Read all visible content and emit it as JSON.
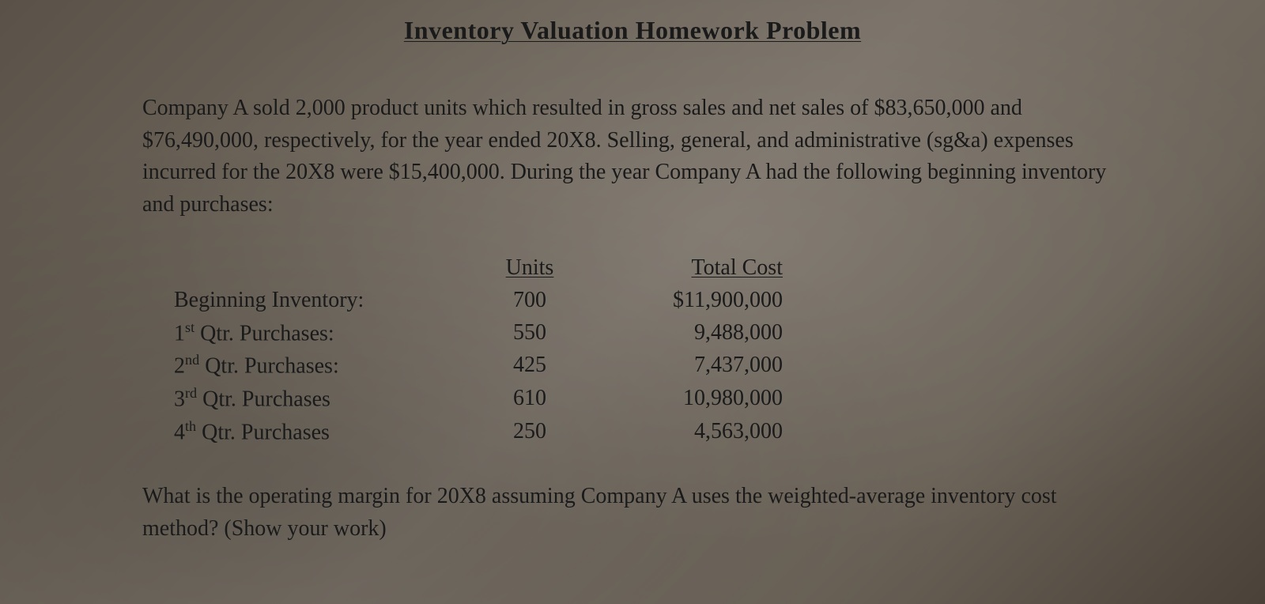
{
  "title": "Inventory Valuation Homework Problem",
  "paragraph": "Company A sold 2,000 product units which resulted in gross sales and net sales of $83,650,000 and $76,490,000, respectively, for the year ended 20X8. Selling, general, and administrative (sg&a) expenses incurred for the 20X8 were $15,400,000. During the year Company A had the following beginning inventory and purchases:",
  "table": {
    "headers": {
      "units": "Units",
      "total_cost": "Total Cost"
    },
    "rows": [
      {
        "label_html": "Beginning Inventory:",
        "units": "700",
        "cost": "$11,900,000"
      },
      {
        "label_html": "1<sup>st</sup> Qtr. Purchases:",
        "units": "550",
        "cost": "9,488,000"
      },
      {
        "label_html": "2<sup>nd</sup> Qtr. Purchases:",
        "units": "425",
        "cost": "7,437,000"
      },
      {
        "label_html": "3<sup>rd</sup> Qtr. Purchases",
        "units": "610",
        "cost": "10,980,000"
      },
      {
        "label_html": "4<sup>th</sup> Qtr. Purchases",
        "units": "250",
        "cost": "4,563,000"
      }
    ]
  },
  "question": "What is the operating margin for 20X8 assuming Company A uses the weighted-average inventory cost method? (Show your work)",
  "styling": {
    "background_gradient_colors": [
      "#5a5248",
      "#6b6358",
      "#7a7268",
      "#4a4238"
    ],
    "text_color": "#1a1a1a",
    "font_family": "Georgia, Times New Roman, serif",
    "title_fontsize": 32,
    "body_fontsize": 28,
    "line_height": 1.45
  }
}
